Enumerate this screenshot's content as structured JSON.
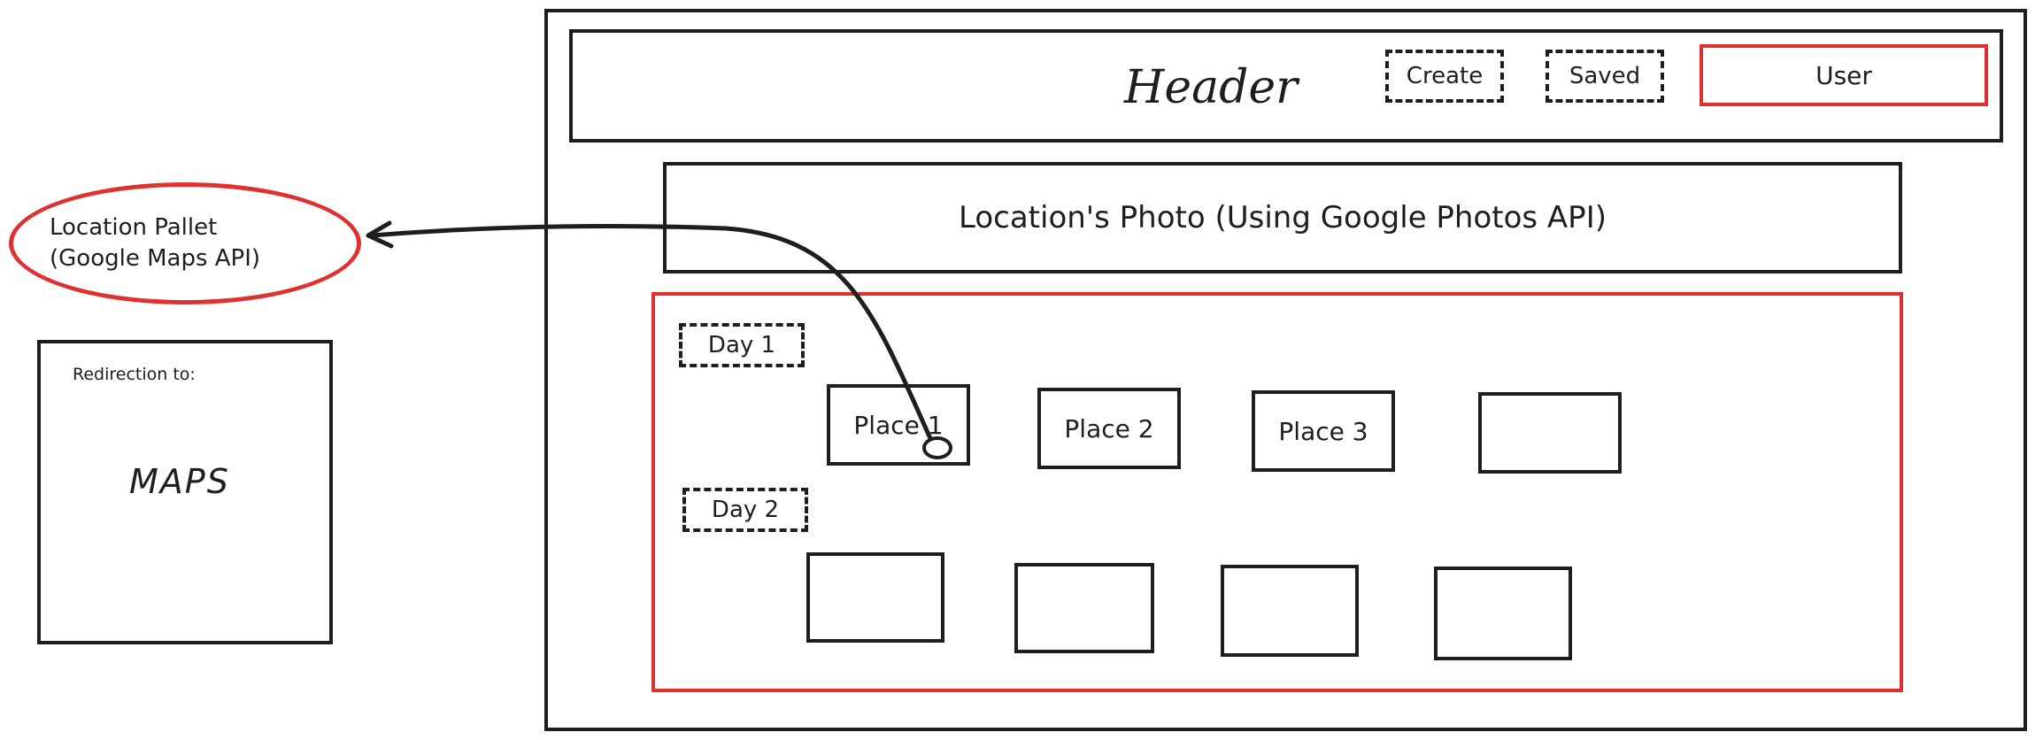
{
  "colors": {
    "stroke": "#1e1e1e",
    "accent_red": "#e03131",
    "background": "#ffffff"
  },
  "header": {
    "title": "Header",
    "create_label": "Create",
    "saved_label": "Saved",
    "user_label": "User"
  },
  "location_photo": {
    "label": "Location's Photo (Using Google Photos API)"
  },
  "itinerary": {
    "days": [
      {
        "label": "Day 1",
        "places": [
          "Place 1",
          "Place 2",
          "Place 3",
          ""
        ]
      },
      {
        "label": "Day 2",
        "places": [
          "",
          "",
          "",
          ""
        ]
      }
    ]
  },
  "location_pallet": {
    "line1": "Location Pallet",
    "line2": "(Google Maps API)"
  },
  "maps_panel": {
    "caption": "Redirection to:",
    "title": "MAPS"
  }
}
